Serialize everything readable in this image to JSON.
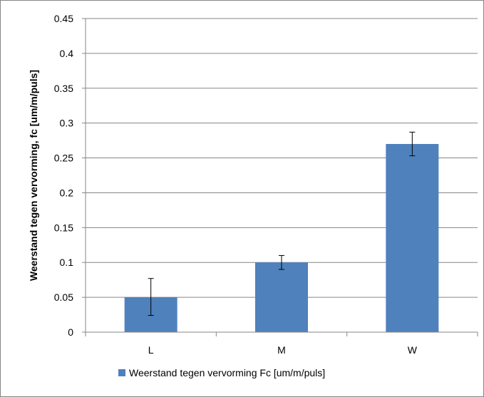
{
  "chart_data": {
    "type": "bar",
    "categories": [
      "L",
      "M",
      "W"
    ],
    "series": [
      {
        "name": "Weerstand tegen vervorming Fc [um/m/puls]",
        "values": [
          0.05,
          0.1,
          0.27
        ],
        "error_low": [
          0.024,
          0.09,
          0.253
        ],
        "error_high": [
          0.077,
          0.11,
          0.287
        ],
        "color": "#4F81BD"
      }
    ],
    "ylabel": "Weerstand tegen vervorming, fc [um/m/puls]",
    "ylim": [
      0,
      0.45
    ],
    "yticks": [
      "0",
      "0.05",
      "0.1",
      "0.15",
      "0.2",
      "0.25",
      "0.3",
      "0.35",
      "0.4",
      "0.45"
    ],
    "grid": true,
    "legend": "bottom"
  }
}
